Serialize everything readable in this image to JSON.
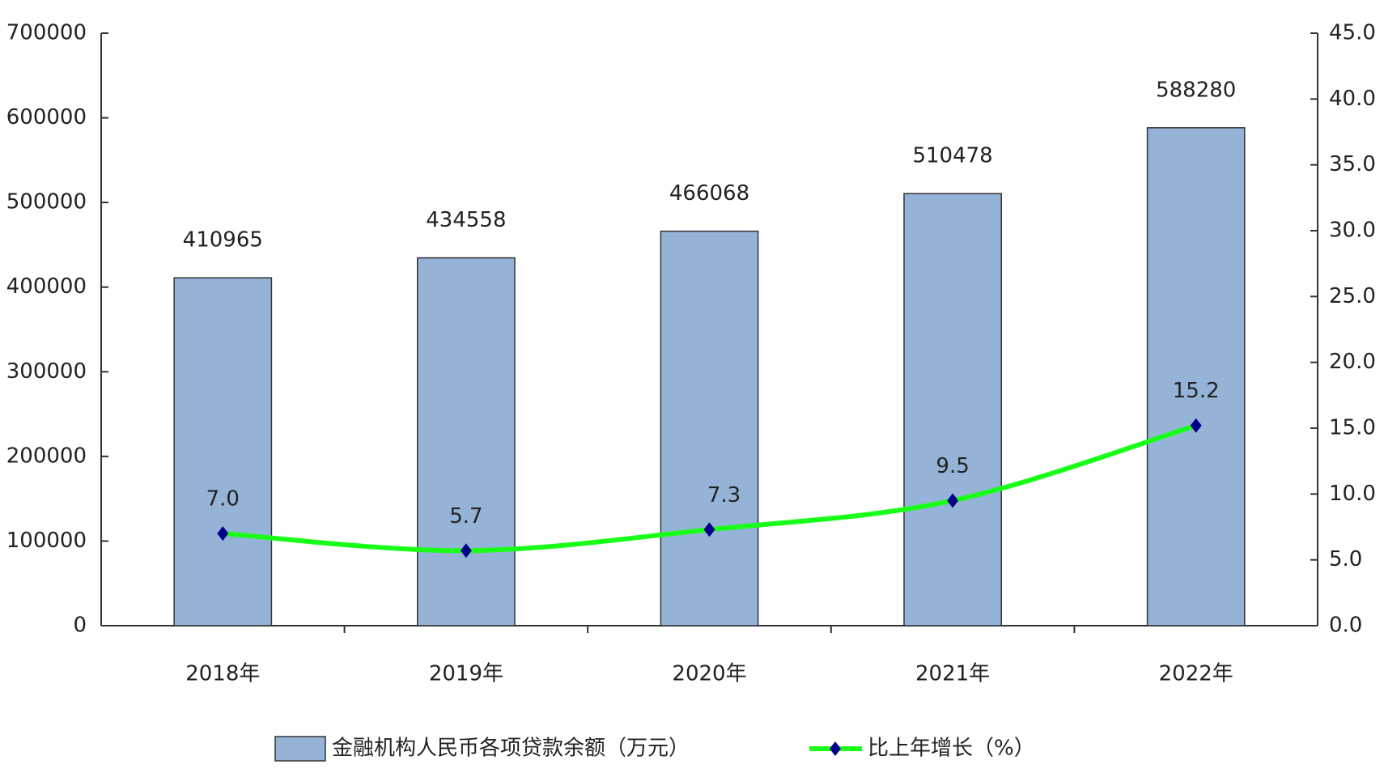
{
  "chart_data": {
    "type": "bar_line",
    "categories": [
      "2018年",
      "2019年",
      "2020年",
      "2021年",
      "2022年"
    ],
    "series": [
      {
        "name": "金融机构人民币各项贷款余额（万元）",
        "type": "bar",
        "color": "#95b3d7",
        "values": [
          410965,
          434558,
          466068,
          510478,
          588280
        ]
      },
      {
        "name": "比上年增长（%）",
        "type": "line",
        "axis": "y2",
        "color": "#1aff1a",
        "marker_color": "#00008b",
        "values": [
          7.0,
          5.7,
          7.3,
          9.5,
          15.2
        ],
        "value_labels": [
          "7.0",
          "5.7",
          "7.3",
          "9.5",
          "15.2"
        ]
      }
    ],
    "ylim": [
      0,
      700000
    ],
    "yticks": [
      0,
      100000,
      200000,
      300000,
      400000,
      500000,
      600000,
      700000
    ],
    "y2lim": [
      0,
      45
    ],
    "y2ticks": [
      {
        "value": 0,
        "label": "0.0"
      },
      {
        "value": 5,
        "label": "5.0"
      },
      {
        "value": 10,
        "label": "10.0"
      },
      {
        "value": 15,
        "label": "15.0"
      },
      {
        "value": 20,
        "label": "20.0"
      },
      {
        "value": 25,
        "label": "25.0"
      },
      {
        "value": 30,
        "label": "30.0"
      },
      {
        "value": 35,
        "label": "35.0"
      },
      {
        "value": 40,
        "label": "40.0"
      },
      {
        "value": 45,
        "label": "45.0"
      }
    ]
  }
}
